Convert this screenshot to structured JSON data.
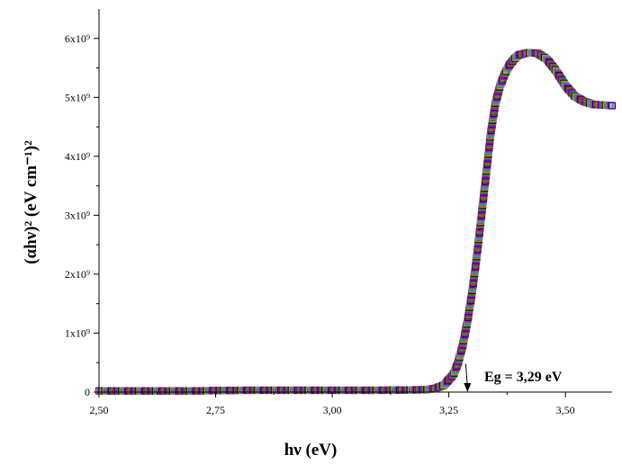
{
  "chart_data": {
    "type": "scatter",
    "xlabel": "hν (eV)",
    "ylabel": "(αhν)² (eV cm⁻¹)²",
    "xlim": [
      2.5,
      3.6
    ],
    "ylim": [
      0,
      6500000000.0
    ],
    "x_ticks": [
      {
        "value": 2.5,
        "label": "2,50"
      },
      {
        "value": 2.75,
        "label": "2,75"
      },
      {
        "value": 3.0,
        "label": "3,00"
      },
      {
        "value": 3.25,
        "label": "3,25"
      },
      {
        "value": 3.5,
        "label": "3,50"
      }
    ],
    "y_ticks": [
      {
        "value": 0,
        "label": "0"
      },
      {
        "value": 1000000000.0,
        "label": "1x10⁹"
      },
      {
        "value": 2000000000.0,
        "label": "2x10⁹"
      },
      {
        "value": 3000000000.0,
        "label": "3x10⁹"
      },
      {
        "value": 4000000000.0,
        "label": "4x10⁹"
      },
      {
        "value": 5000000000.0,
        "label": "5x10⁹"
      },
      {
        "value": 6000000000.0,
        "label": "6x10⁹"
      }
    ],
    "grid": false,
    "series": [
      {
        "x": [
          2.5,
          2.6,
          2.7,
          2.8,
          2.9,
          3.0,
          3.1,
          3.2,
          3.22,
          3.24,
          3.26,
          3.27,
          3.28,
          3.29,
          3.3,
          3.31,
          3.32,
          3.33,
          3.34,
          3.35,
          3.36,
          3.37,
          3.38,
          3.39,
          3.4,
          3.42,
          3.44,
          3.46,
          3.48,
          3.5,
          3.52,
          3.54,
          3.56,
          3.58,
          3.6
        ],
        "y": [
          20000000.0,
          20000000.0,
          20000000.0,
          30000000.0,
          30000000.0,
          30000000.0,
          30000000.0,
          40000000.0,
          60000000.0,
          120000000.0,
          300000000.0,
          500000000.0,
          800000000.0,
          1200000000.0,
          1700000000.0,
          2300000000.0,
          3000000000.0,
          3700000000.0,
          4400000000.0,
          4900000000.0,
          5200000000.0,
          5400000000.0,
          5550000000.0,
          5650000000.0,
          5720000000.0,
          5760000000.0,
          5750000000.0,
          5650000000.0,
          5450000000.0,
          5200000000.0,
          5020000000.0,
          4930000000.0,
          4880000000.0,
          4870000000.0,
          4860000000.0
        ]
      }
    ],
    "annotations": [
      {
        "text": "Eg = 3,29 eV",
        "x": 3.29
      }
    ]
  }
}
